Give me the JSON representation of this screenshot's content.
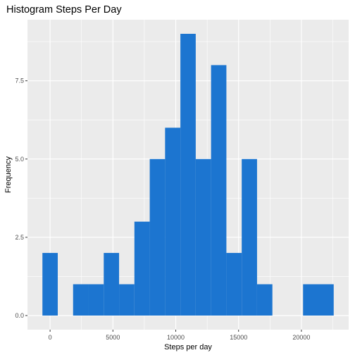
{
  "chart_data": {
    "type": "bar",
    "title": "Histogram Steps Per Day",
    "xlabel": "Steps per day",
    "ylabel": "Frequency",
    "bin_width": 1220,
    "bins": [
      {
        "x0": -610,
        "x1": 610,
        "count": 2
      },
      {
        "x0": 610,
        "x1": 1830,
        "count": 0
      },
      {
        "x0": 1830,
        "x1": 3050,
        "count": 1
      },
      {
        "x0": 3050,
        "x1": 4270,
        "count": 1
      },
      {
        "x0": 4270,
        "x1": 5490,
        "count": 2
      },
      {
        "x0": 5490,
        "x1": 6710,
        "count": 1
      },
      {
        "x0": 6710,
        "x1": 7930,
        "count": 3
      },
      {
        "x0": 7930,
        "x1": 9150,
        "count": 5
      },
      {
        "x0": 9150,
        "x1": 10370,
        "count": 6
      },
      {
        "x0": 10370,
        "x1": 11590,
        "count": 9
      },
      {
        "x0": 11590,
        "x1": 12810,
        "count": 5
      },
      {
        "x0": 12810,
        "x1": 14030,
        "count": 8
      },
      {
        "x0": 14030,
        "x1": 15250,
        "count": 2
      },
      {
        "x0": 15250,
        "x1": 16470,
        "count": 5
      },
      {
        "x0": 16470,
        "x1": 17690,
        "count": 1
      },
      {
        "x0": 17690,
        "x1": 18910,
        "count": 0
      },
      {
        "x0": 18910,
        "x1": 20130,
        "count": 0
      },
      {
        "x0": 20130,
        "x1": 21350,
        "count": 1
      },
      {
        "x0": 21350,
        "x1": 22570,
        "count": 1
      }
    ],
    "xlim": [
      -1800,
      23760
    ],
    "ylim": [
      -0.45,
      9.45
    ],
    "x_ticks": [
      0,
      5000,
      10000,
      15000,
      20000
    ],
    "x_tick_labels": [
      "0",
      "5000",
      "10000",
      "15000",
      "20000"
    ],
    "y_ticks": [
      0,
      2.5,
      5,
      7.5
    ],
    "y_tick_labels": [
      "0.0",
      "2.5",
      "5.0",
      "7.5"
    ],
    "grid": true,
    "bar_color": "#1c75d0",
    "panel_background": "#ebebeb",
    "grid_color": "#ffffff"
  }
}
